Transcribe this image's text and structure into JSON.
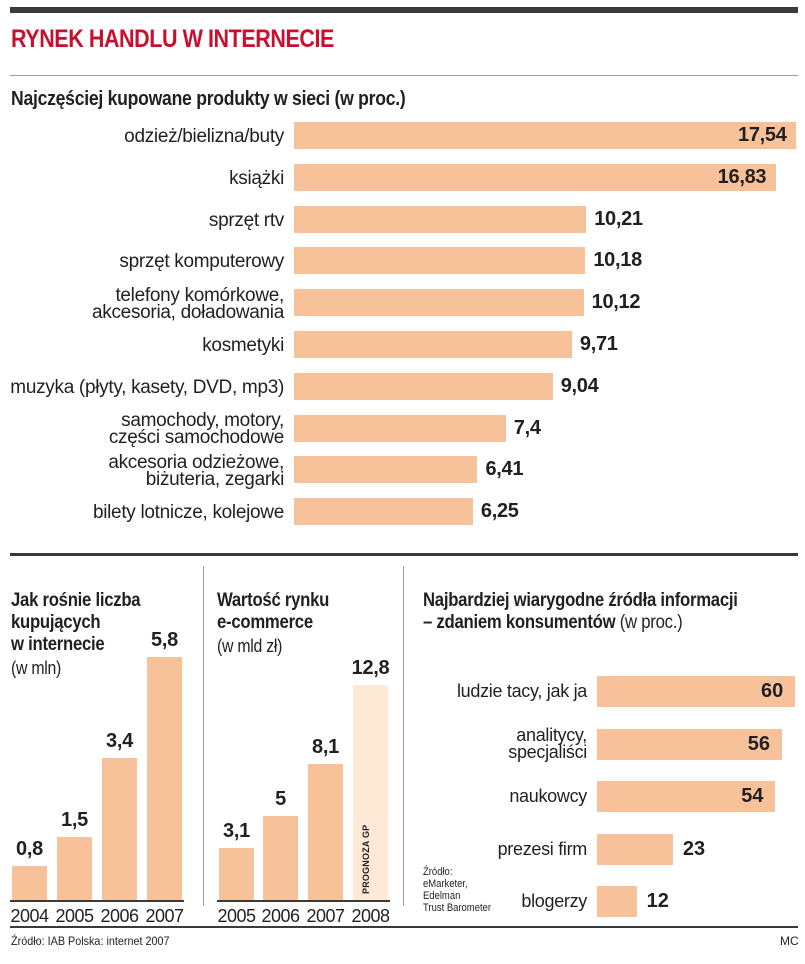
{
  "header": {
    "title": "RYNEK HANDLU W INTERNECIE",
    "subtitle": "Najczęściej kupowane produkty w sieci (w proc.)"
  },
  "chart_data": [
    {
      "type": "bar",
      "orientation": "horizontal",
      "title": "Najczęściej kupowane produkty w sieci (w proc.)",
      "categories": [
        [
          "odzież/bielizna/buty"
        ],
        [
          "książki"
        ],
        [
          "sprzęt rtv"
        ],
        [
          "sprzęt komputerowy"
        ],
        [
          "telefony komórkowe,",
          "akcesoria, doładowania"
        ],
        [
          "kosmetyki"
        ],
        [
          "muzyka (płyty, kasety, DVD, mp3)"
        ],
        [
          "samochody, motory,",
          "części samochodowe"
        ],
        [
          "akcesoria odzieżowe,",
          "biżuteria, zegarki"
        ],
        [
          "bilety lotnicze, kolejowe"
        ]
      ],
      "values": [
        17.54,
        16.83,
        10.21,
        10.18,
        10.12,
        9.71,
        9.04,
        7.4,
        6.41,
        6.25
      ],
      "value_labels": [
        "17,54",
        "16,83",
        "10,21",
        "10,18",
        "10,12",
        "9,71",
        "9,04",
        "7,4",
        "6,41",
        "6,25"
      ],
      "xlim": [
        0,
        17.54
      ],
      "bar_color": "#f7c29a"
    },
    {
      "type": "bar",
      "title_lines": [
        "Jak rośnie liczba",
        "kupujących",
        "w internecie"
      ],
      "subtitle": "(w mln)",
      "categories": [
        "2004",
        "2005",
        "2006",
        "2007"
      ],
      "values": [
        0.8,
        1.5,
        3.4,
        5.8
      ],
      "value_labels": [
        "0,8",
        "1,5",
        "3,4",
        "5,8"
      ],
      "ylim": [
        0,
        5.8
      ],
      "bar_color": "#f7c29a"
    },
    {
      "type": "bar",
      "title_lines": [
        "Wartość rynku",
        "e-commerce"
      ],
      "subtitle": "(w mld zł)",
      "categories": [
        "2005",
        "2006",
        "2007",
        "2008"
      ],
      "values": [
        3.1,
        5,
        8.1,
        12.8
      ],
      "value_labels": [
        "3,1",
        "5",
        "8,1",
        "12,8"
      ],
      "forecast": [
        false,
        false,
        false,
        true
      ],
      "forecast_label": "PROGNOZA GP",
      "ylim": [
        0,
        12.8
      ],
      "bar_color": "#f7c29a",
      "forecast_color": "#fde9d6"
    },
    {
      "type": "bar",
      "orientation": "horizontal",
      "title_bold_1": "Najbardziej wiarygodne źródła informacji",
      "title_bold_2": "– zdaniem konsumentów",
      "title_normal": " (w proc.)",
      "categories": [
        [
          "ludzie tacy, jak ja"
        ],
        [
          "analitycy,",
          "specjaliści"
        ],
        [
          "naukowcy"
        ],
        [
          "prezesi firm"
        ],
        [
          "blogerzy"
        ]
      ],
      "values": [
        60,
        56,
        54,
        23,
        12
      ],
      "value_labels": [
        "60",
        "56",
        "54",
        "23",
        "12"
      ],
      "xlim": [
        0,
        60
      ],
      "bar_color": "#f7c29a"
    }
  ],
  "sources": {
    "left_lines": [
      "Źródło: IAB Polska: internet 2007"
    ],
    "right_lines": [
      "Źródło:",
      "eMarketer,",
      "Edelman",
      "Trust Barometer"
    ],
    "credit": "MC"
  }
}
